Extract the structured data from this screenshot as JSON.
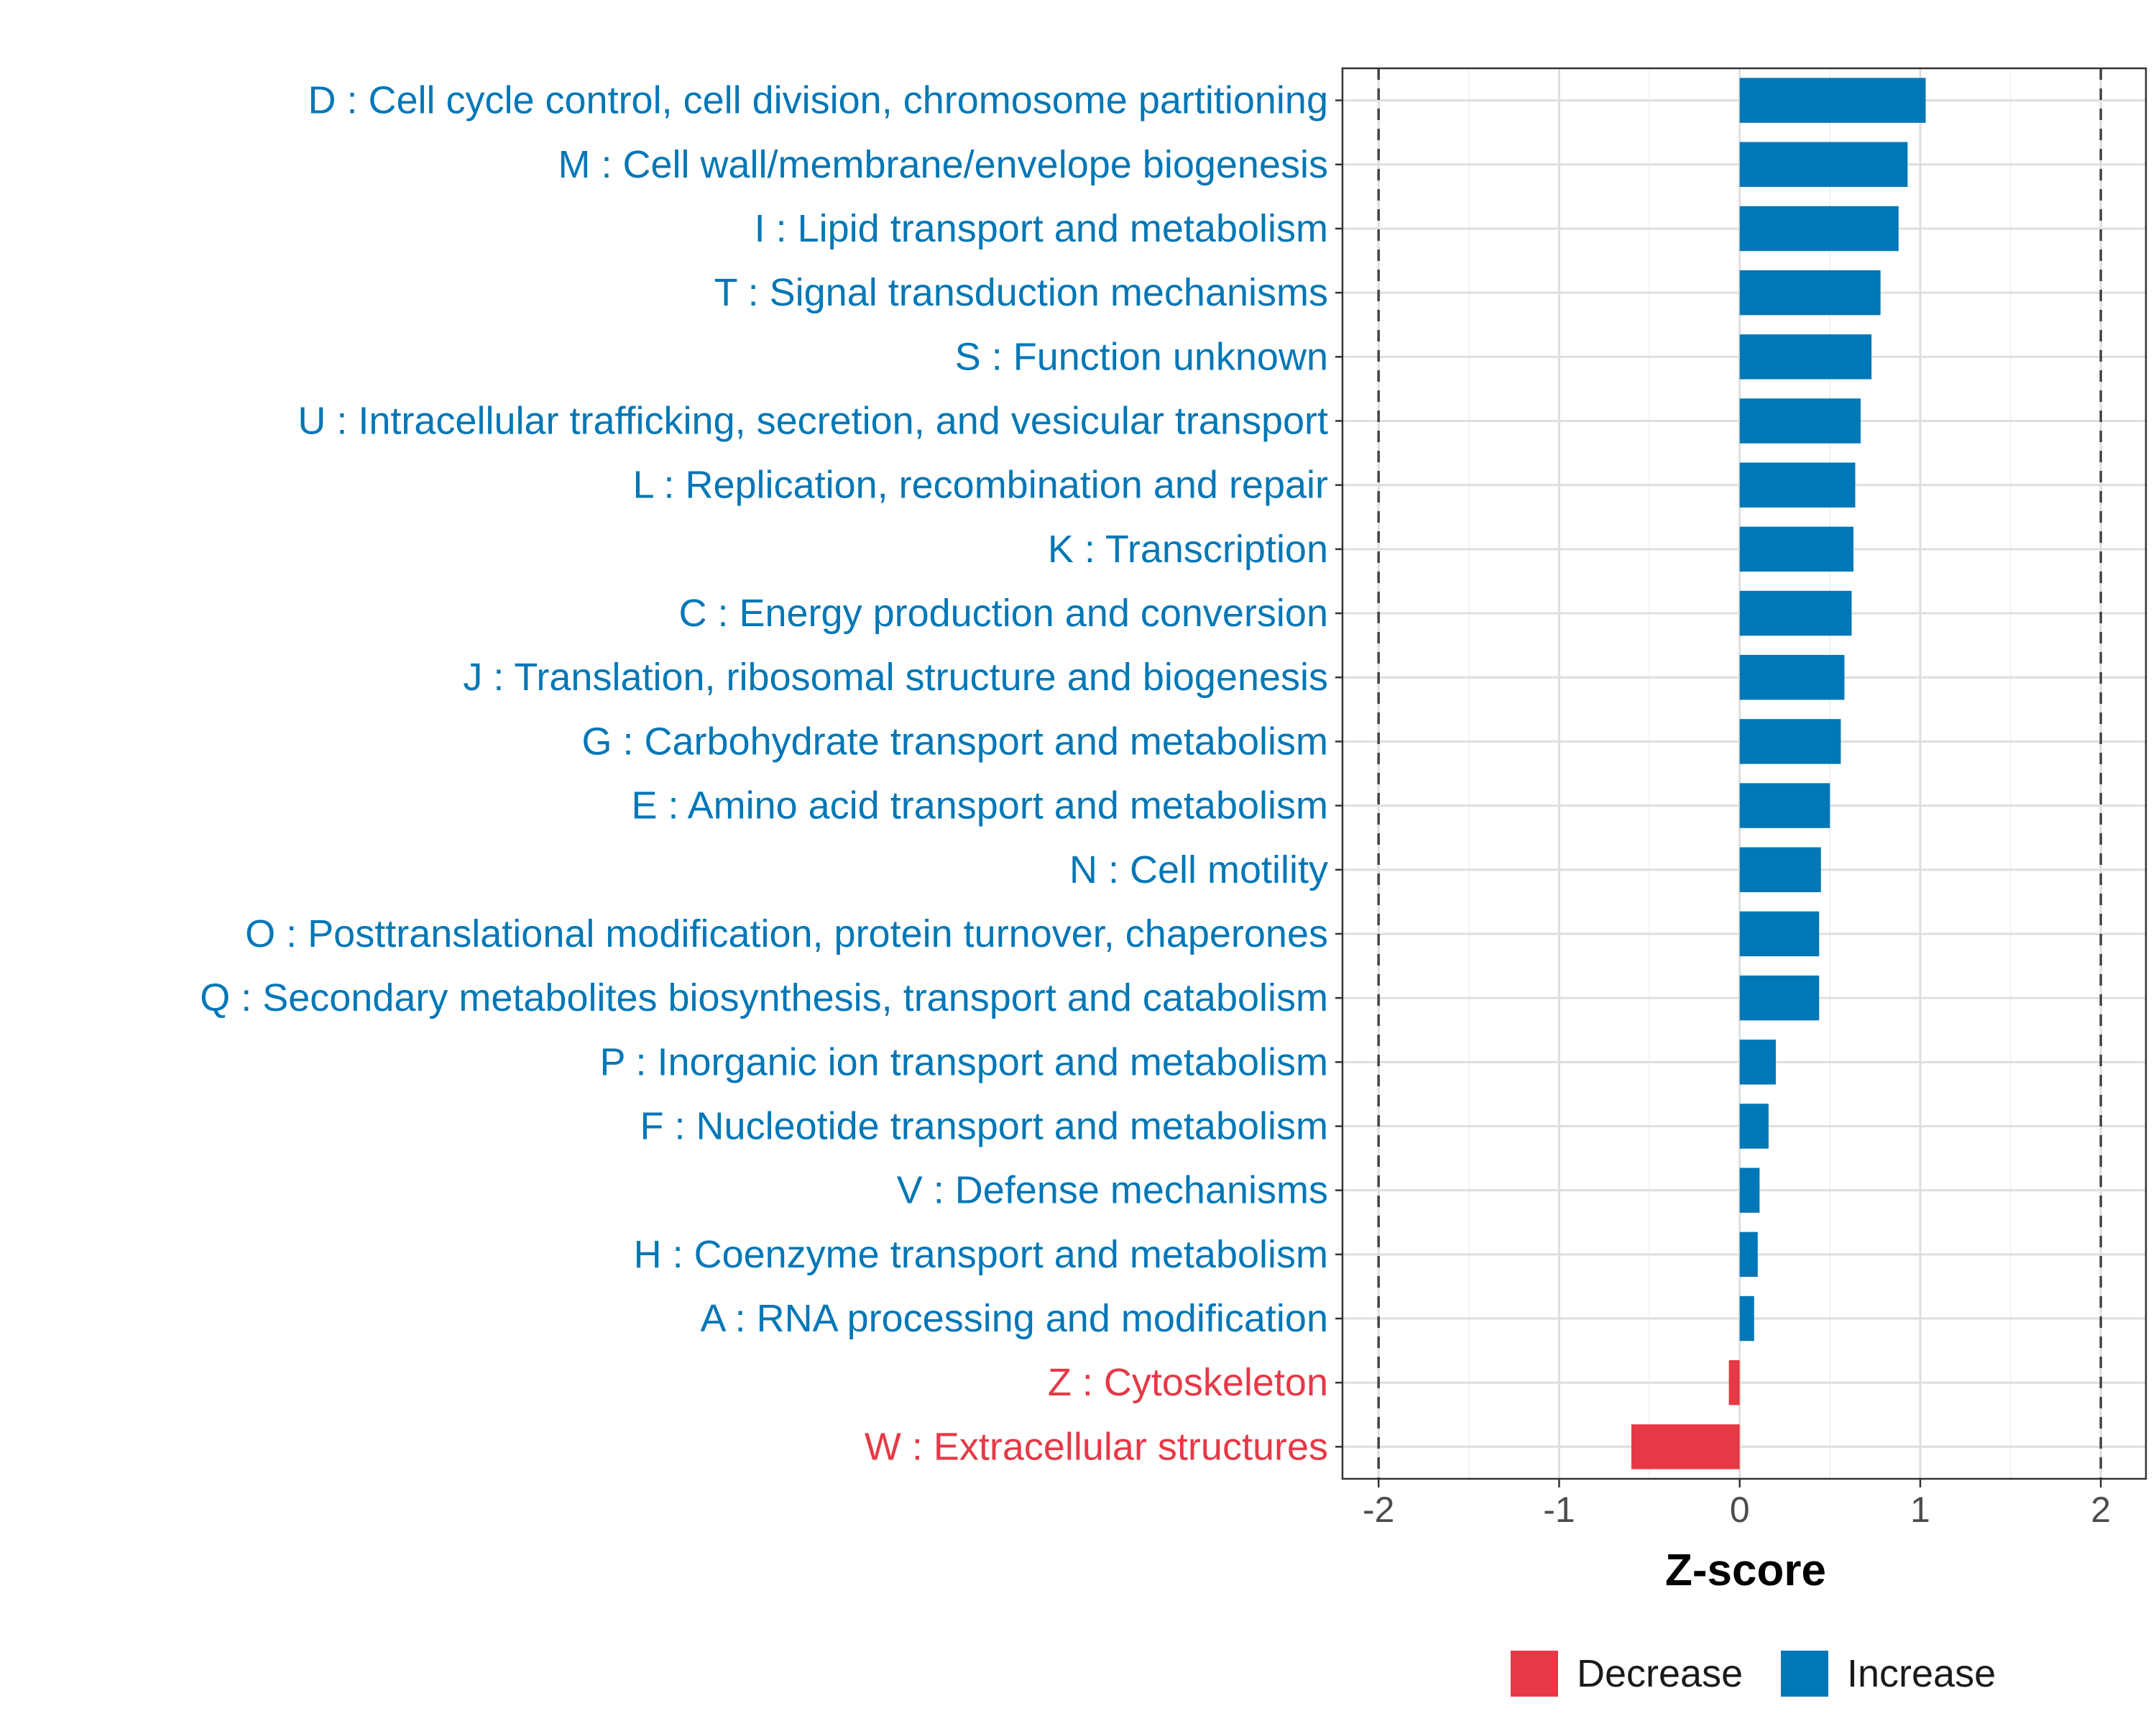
{
  "chart_data": {
    "type": "bar",
    "orientation": "horizontal",
    "title": "",
    "xlabel": "Z-score",
    "ylabel": "",
    "xlim": [
      -2.2,
      2.25
    ],
    "xticks": [
      -2,
      -1,
      0,
      1,
      2
    ],
    "xtick_labels": [
      "-2",
      "-1",
      "0",
      "1",
      "2"
    ],
    "reference_lines": [
      -2,
      2
    ],
    "grid": true,
    "legend_position": "bottom",
    "categories": [
      "D : Cell cycle control, cell division, chromosome partitioning",
      "M : Cell wall/membrane/envelope biogenesis",
      "I : Lipid transport and metabolism",
      "T : Signal transduction mechanisms",
      "S : Function unknown",
      "U : Intracellular trafficking, secretion, and vesicular transport",
      "L : Replication, recombination and repair",
      "K : Transcription",
      "C : Energy production and conversion",
      "J : Translation, ribosomal structure and biogenesis",
      "G : Carbohydrate transport and metabolism",
      "E : Amino acid transport and metabolism",
      "N : Cell motility",
      "O : Posttranslational modification, protein turnover, chaperones",
      "Q : Secondary metabolites biosynthesis, transport and catabolism",
      "P : Inorganic ion transport and metabolism",
      "F : Nucleotide transport and metabolism",
      "V : Defense mechanisms",
      "H : Coenzyme transport and metabolism",
      "A : RNA processing and modification",
      "Z : Cytoskeleton",
      "W : Extracellular structures"
    ],
    "values": [
      1.03,
      0.93,
      0.88,
      0.78,
      0.73,
      0.67,
      0.64,
      0.63,
      0.62,
      0.58,
      0.56,
      0.5,
      0.45,
      0.44,
      0.44,
      0.2,
      0.16,
      0.11,
      0.1,
      0.08,
      -0.06,
      -0.6
    ],
    "groups": [
      "Increase",
      "Increase",
      "Increase",
      "Increase",
      "Increase",
      "Increase",
      "Increase",
      "Increase",
      "Increase",
      "Increase",
      "Increase",
      "Increase",
      "Increase",
      "Increase",
      "Increase",
      "Increase",
      "Increase",
      "Increase",
      "Increase",
      "Increase",
      "Decrease",
      "Decrease"
    ],
    "legend": [
      {
        "label": "Decrease",
        "color": "#e63946"
      },
      {
        "label": "Increase",
        "color": "#0077b6"
      }
    ],
    "colors": {
      "Decrease": "#e63946",
      "Increase": "#0077b6"
    }
  }
}
